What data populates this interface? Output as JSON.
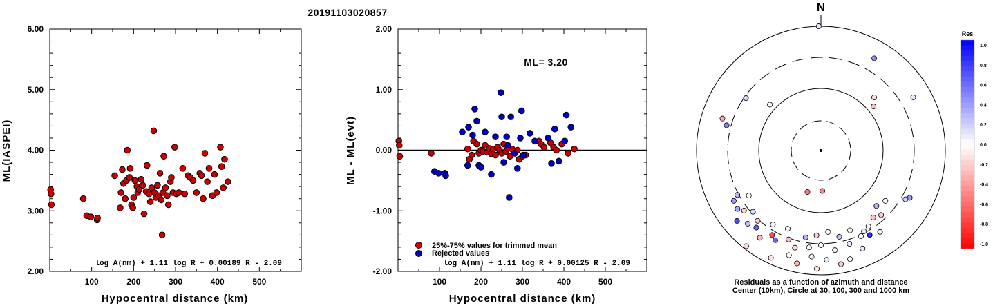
{
  "title": "20191103020857",
  "colors": {
    "red": "#cc0000",
    "blue": "#0000cc",
    "axis": "#000000"
  },
  "chart_data": [
    {
      "type": "scatter",
      "xlabel": "Hypocentral distance (km)",
      "ylabel": "ML(IASPEI)",
      "xlim": [
        0,
        600
      ],
      "ylim": [
        2.0,
        6.0
      ],
      "xticks": [
        "100",
        "200",
        "300",
        "400",
        "500"
      ],
      "yticks": [
        "2.00",
        "3.00",
        "4.00",
        "5.00",
        "6.00"
      ],
      "formula": "log A(nm) + 1.11 log R + 0.00189 R - 2.09",
      "points": [
        [
          2,
          3.35
        ],
        [
          3,
          3.28
        ],
        [
          4,
          3.1
        ],
        [
          80,
          3.2
        ],
        [
          88,
          2.92
        ],
        [
          98,
          2.9
        ],
        [
          113,
          2.85
        ],
        [
          114,
          2.88
        ],
        [
          155,
          3.58
        ],
        [
          168,
          3.05
        ],
        [
          170,
          3.3
        ],
        [
          173,
          3.68
        ],
        [
          176,
          3.45
        ],
        [
          180,
          3.2
        ],
        [
          183,
          3.5
        ],
        [
          185,
          4.0
        ],
        [
          190,
          3.55
        ],
        [
          192,
          3.7
        ],
        [
          195,
          3.1
        ],
        [
          198,
          3.05
        ],
        [
          200,
          3.22
        ],
        [
          203,
          3.5
        ],
        [
          208,
          3.4
        ],
        [
          210,
          3.3
        ],
        [
          213,
          3.35
        ],
        [
          218,
          3.52
        ],
        [
          222,
          3.42
        ],
        [
          225,
          2.95
        ],
        [
          230,
          3.32
        ],
        [
          232,
          3.75
        ],
        [
          237,
          3.28
        ],
        [
          240,
          3.15
        ],
        [
          243,
          3.38
        ],
        [
          248,
          4.32
        ],
        [
          250,
          3.3
        ],
        [
          253,
          3.22
        ],
        [
          257,
          3.42
        ],
        [
          260,
          3.25
        ],
        [
          263,
          3.62
        ],
        [
          266,
          3.18
        ],
        [
          268,
          2.6
        ],
        [
          270,
          3.3
        ],
        [
          272,
          3.9
        ],
        [
          276,
          3.38
        ],
        [
          280,
          3.25
        ],
        [
          283,
          3.1
        ],
        [
          288,
          3.48
        ],
        [
          290,
          3.55
        ],
        [
          294,
          3.3
        ],
        [
          298,
          4.05
        ],
        [
          302,
          3.28
        ],
        [
          308,
          3.3
        ],
        [
          317,
          3.7
        ],
        [
          322,
          3.28
        ],
        [
          330,
          3.58
        ],
        [
          335,
          3.55
        ],
        [
          342,
          3.5
        ],
        [
          350,
          3.3
        ],
        [
          358,
          3.62
        ],
        [
          362,
          3.58
        ],
        [
          366,
          3.2
        ],
        [
          370,
          3.95
        ],
        [
          376,
          3.48
        ],
        [
          380,
          3.7
        ],
        [
          388,
          3.25
        ],
        [
          393,
          3.6
        ],
        [
          398,
          3.3
        ],
        [
          407,
          4.05
        ],
        [
          410,
          3.73
        ],
        [
          414,
          3.38
        ],
        [
          417,
          3.85
        ],
        [
          425,
          3.48
        ]
      ]
    },
    {
      "type": "scatter",
      "xlabel": "Hypocentral distance (km)",
      "ylabel": "ML - ML(evt)",
      "xlim": [
        0,
        600
      ],
      "ylim": [
        -2.0,
        2.0
      ],
      "xticks": [
        "100",
        "200",
        "300",
        "400",
        "500"
      ],
      "yticks": [
        "-2.00",
        "-1.00",
        "0.00",
        "1.00",
        "2.00"
      ],
      "reference_line": 0.0,
      "annotation": "ML= 3.20",
      "legend": [
        "25%-75% values for trimmed mean",
        "Rejected values"
      ],
      "formula": "log A(nm) + 1.11 log R + 0.00125 R - 2.09",
      "series": [
        {
          "name": "25%-75% values for trimmed mean",
          "color": "red",
          "points": [
            [
              2,
              0.15
            ],
            [
              3,
              0.08
            ],
            [
              4,
              -0.1
            ],
            [
              80,
              -0.05
            ],
            [
              168,
              0.02
            ],
            [
              172,
              -0.15
            ],
            [
              178,
              -0.08
            ],
            [
              182,
              0.15
            ],
            [
              190,
              0.1
            ],
            [
              195,
              -0.05
            ],
            [
              200,
              0.0
            ],
            [
              205,
              -0.02
            ],
            [
              210,
              0.08
            ],
            [
              215,
              -0.03
            ],
            [
              220,
              0.03
            ],
            [
              225,
              -0.06
            ],
            [
              230,
              0.02
            ],
            [
              235,
              -0.08
            ],
            [
              240,
              0.05
            ],
            [
              245,
              0.0
            ],
            [
              250,
              -0.05
            ],
            [
              255,
              0.1
            ],
            [
              260,
              -0.02
            ],
            [
              265,
              0.03
            ],
            [
              270,
              -0.1
            ],
            [
              275,
              0.02
            ],
            [
              282,
              -0.05
            ],
            [
              288,
              0.0
            ],
            [
              292,
              -0.15
            ],
            [
              300,
              -0.1
            ],
            [
              308,
              -0.08
            ],
            [
              340,
              0.15
            ],
            [
              345,
              0.1
            ],
            [
              352,
              0.05
            ],
            [
              368,
              0.12
            ],
            [
              375,
              0.05
            ],
            [
              382,
              0.0
            ],
            [
              395,
              0.1
            ],
            [
              410,
              -0.05
            ],
            [
              425,
              0.02
            ]
          ]
        },
        {
          "name": "Rejected values",
          "color": "blue",
          "points": [
            [
              88,
              -0.35
            ],
            [
              98,
              -0.38
            ],
            [
              113,
              -0.38
            ],
            [
              115,
              -0.42
            ],
            [
              155,
              0.3
            ],
            [
              168,
              -0.25
            ],
            [
              170,
              0.38
            ],
            [
              180,
              0.25
            ],
            [
              185,
              0.68
            ],
            [
              190,
              0.48
            ],
            [
              195,
              -0.25
            ],
            [
              200,
              -0.28
            ],
            [
              210,
              0.3
            ],
            [
              225,
              -0.4
            ],
            [
              235,
              0.22
            ],
            [
              248,
              0.95
            ],
            [
              250,
              0.55
            ],
            [
              255,
              -0.2
            ],
            [
              262,
              0.22
            ],
            [
              265,
              0.08
            ],
            [
              268,
              -0.78
            ],
            [
              272,
              0.55
            ],
            [
              280,
              -0.05
            ],
            [
              288,
              -0.3
            ],
            [
              295,
              0.2
            ],
            [
              298,
              0.65
            ],
            [
              302,
              -0.08
            ],
            [
              318,
              0.28
            ],
            [
              330,
              0.15
            ],
            [
              362,
              0.2
            ],
            [
              370,
              -0.22
            ],
            [
              378,
              0.35
            ],
            [
              388,
              -0.18
            ],
            [
              402,
              0.15
            ],
            [
              406,
              0.58
            ],
            [
              417,
              0.38
            ]
          ]
        }
      ]
    },
    {
      "type": "polar-scatter",
      "north_label": "N",
      "caption_line1": "Residuals as a function of azimuth and distance",
      "caption_line2": "Center (10km), Circle at 30, 100, 300 and 1000 km",
      "colorbar": {
        "title": "Res",
        "ticks": [
          "1.0",
          "0.8",
          "0.6",
          "0.4",
          "0.2",
          "0.0",
          "-0.2",
          "-0.4",
          "-0.6",
          "-0.8",
          "-1.0"
        ]
      },
      "stations": [
        [
          -1,
          3.2,
          0.1
        ],
        [
          30,
          2.7,
          0.45
        ],
        [
          45,
          2.2,
          -0.12
        ],
        [
          50,
          2.1,
          -0.25
        ],
        [
          60,
          2.7,
          0.08
        ],
        [
          285,
          2.55,
          0.5
        ],
        [
          288,
          2.65,
          -0.35
        ],
        [
          305,
          2.45,
          0.15
        ],
        [
          312,
          2.1,
          0.02
        ],
        [
          118,
          2.6,
          0.4
        ],
        [
          120,
          2.55,
          0.2
        ],
        [
          128,
          2.3,
          0.02
        ],
        [
          135,
          2.25,
          0.3
        ],
        [
          137,
          2.4,
          -0.2
        ],
        [
          142,
          2.35,
          -0.25
        ],
        [
          144,
          2.6,
          0.05
        ],
        [
          148,
          2.42,
          -0.05
        ],
        [
          150,
          2.55,
          0.8
        ],
        [
          152,
          2.45,
          0.1
        ],
        [
          155,
          2.5,
          0.02
        ],
        [
          157,
          2.7,
          0.08
        ],
        [
          160,
          2.35,
          -0.05
        ],
        [
          163,
          2.55,
          0.1
        ],
        [
          165,
          2.8,
          0.02
        ],
        [
          168,
          2.4,
          0.25
        ],
        [
          170,
          2.85,
          -0.2
        ],
        [
          172,
          2.6,
          0.05
        ],
        [
          175,
          2.3,
          0.02
        ],
        [
          177,
          2.75,
          0.1
        ],
        [
          178,
          1.65,
          -0.5
        ],
        [
          180,
          2.5,
          0.0
        ],
        [
          182,
          2.9,
          -0.1
        ],
        [
          183,
          2.35,
          -0.2
        ],
        [
          185,
          2.7,
          0.05
        ],
        [
          187,
          2.55,
          0.02
        ],
        [
          190,
          2.4,
          0.3
        ],
        [
          192,
          2.85,
          -0.3
        ],
        [
          195,
          2.6,
          -0.15
        ],
        [
          197,
          2.75,
          0.02
        ],
        [
          198,
          1.7,
          -0.5
        ],
        [
          200,
          2.5,
          -0.25
        ],
        [
          203,
          2.35,
          -0.05
        ],
        [
          205,
          2.9,
          -0.1
        ],
        [
          207,
          2.6,
          0.6
        ],
        [
          210,
          2.55,
          -0.7
        ],
        [
          213,
          2.4,
          0.05
        ],
        [
          215,
          2.7,
          -0.3
        ],
        [
          218,
          2.95,
          -0.15
        ],
        [
          220,
          2.6,
          0.6
        ],
        [
          222,
          2.5,
          -0.2
        ],
        [
          225,
          2.65,
          0.25
        ],
        [
          228,
          2.45,
          0.15
        ],
        [
          230,
          2.75,
          0.7
        ],
        [
          232,
          2.55,
          -0.2
        ],
        [
          235,
          2.62,
          0.35
        ],
        [
          238,
          2.35,
          0.0
        ],
        [
          240,
          2.6,
          0.4
        ],
        [
          242,
          2.5,
          0.3
        ]
      ]
    }
  ]
}
